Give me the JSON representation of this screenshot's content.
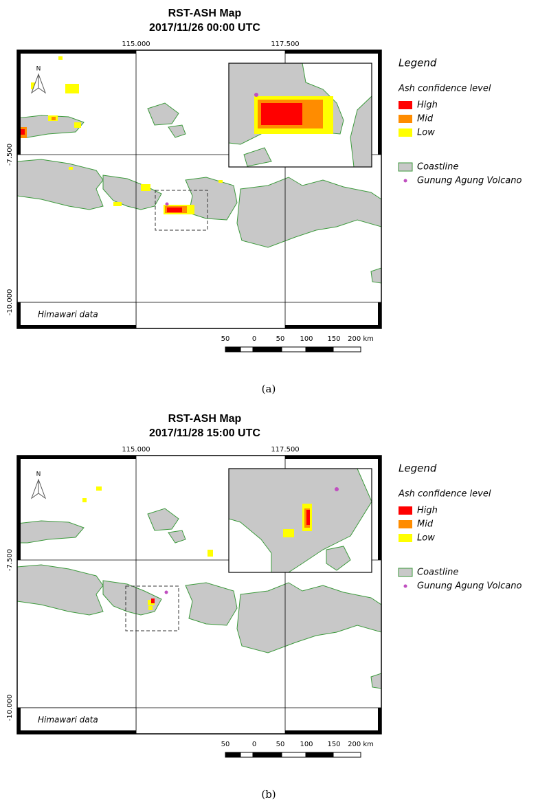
{
  "panels": [
    {
      "title": "RST-ASH Map",
      "timestamp": "2017/11/26 00:00 UTC",
      "x_ticks": [
        "115.000",
        "117.500"
      ],
      "y_ticks": [
        "-7.500",
        "-10.000"
      ],
      "north": "N",
      "legend": {
        "title": "Legend",
        "subtitle": "Ash confidence level",
        "items": [
          "High",
          "Mid",
          "Low"
        ],
        "coastline": "Coastline",
        "volcano": "Gunung Agung Volcano"
      },
      "source": "Himawari data",
      "scale": [
        "50",
        "0",
        "50",
        "100",
        "150",
        "200 km"
      ],
      "caption": "(a)"
    },
    {
      "title": "RST-ASH Map",
      "timestamp": "2017/11/28 15:00 UTC",
      "x_ticks": [
        "115.000",
        "117.500"
      ],
      "y_ticks": [
        "-7.500",
        "-10.000"
      ],
      "north": "N",
      "legend": {
        "title": "Legend",
        "subtitle": "Ash confidence level",
        "items": [
          "High",
          "Mid",
          "Low"
        ],
        "coastline": "Coastline",
        "volcano": "Gunung Agung Volcano"
      },
      "source": "Himawari data",
      "scale": [
        "50",
        "0",
        "50",
        "100",
        "150",
        "200 km"
      ],
      "caption": "(b)"
    }
  ]
}
